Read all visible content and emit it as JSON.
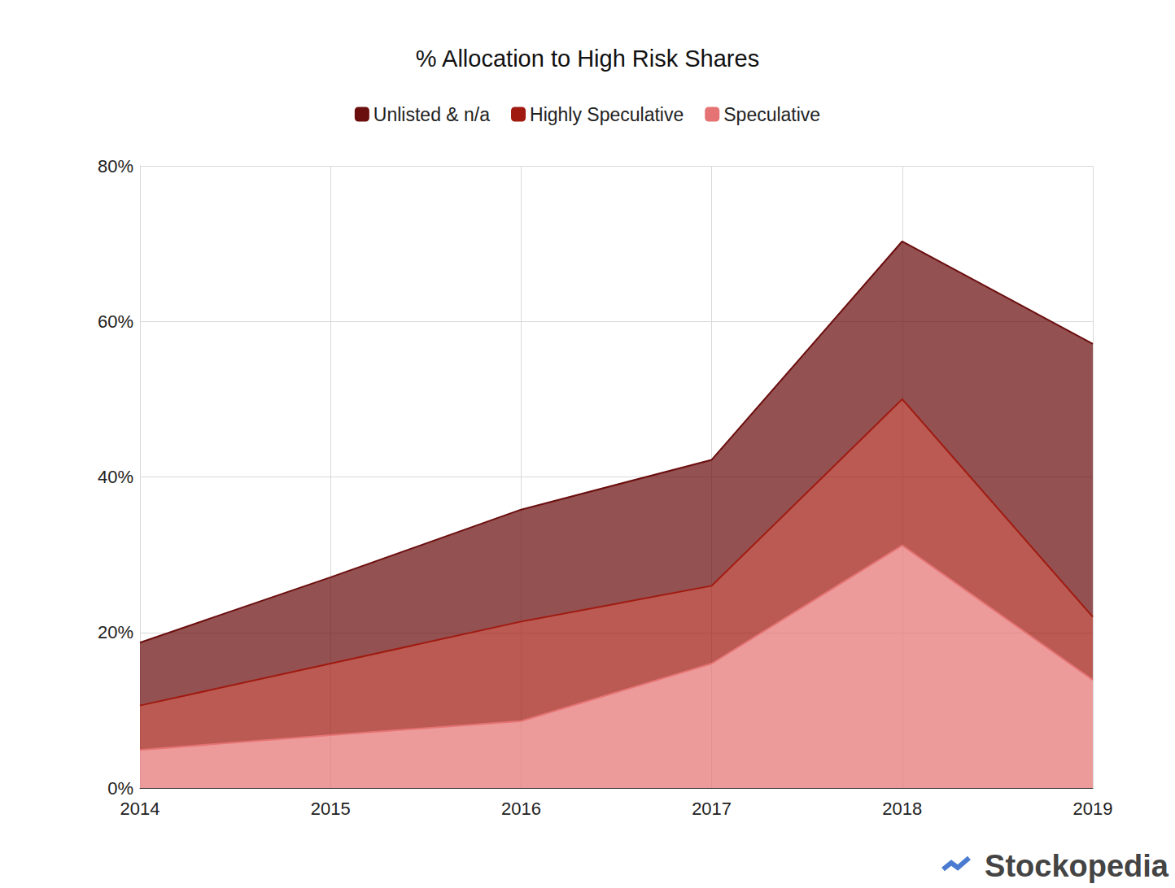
{
  "chart_data": {
    "type": "area",
    "title": "% Allocation to High Risk Shares",
    "categories": [
      "2014",
      "2015",
      "2016",
      "2017",
      "2018",
      "2019"
    ],
    "series": [
      {
        "name": "Unlisted & n/a",
        "color": "#6b0e0e",
        "values": [
          8.1,
          11.1,
          14.4,
          16.2,
          20.3,
          35.1
        ]
      },
      {
        "name": "Highly Speculative",
        "color": "#a01a10",
        "values": [
          5.7,
          9.2,
          12.8,
          10.0,
          18.8,
          8.1
        ]
      },
      {
        "name": "Speculative",
        "color": "#e57373",
        "values": [
          4.9,
          6.8,
          8.6,
          16.0,
          31.2,
          13.9
        ]
      }
    ],
    "ylim": [
      0,
      80
    ],
    "yticks": [
      {
        "value": 0,
        "label": "0%"
      },
      {
        "value": 20,
        "label": "20%"
      },
      {
        "value": 40,
        "label": "40%"
      },
      {
        "value": 60,
        "label": "60%"
      },
      {
        "value": 80,
        "label": "80%"
      }
    ],
    "stacked": true,
    "grid": true,
    "legend": "top",
    "source": "Stockopedia"
  }
}
